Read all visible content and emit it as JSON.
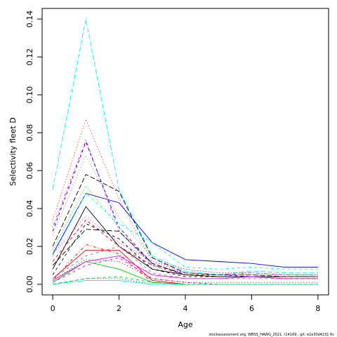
{
  "chart_data": {
    "type": "line",
    "title": "",
    "xlabel": "Age",
    "ylabel": "Selectivity fleet D",
    "xlim": [
      -0.32,
      8.32
    ],
    "ylim": [
      -0.0056,
      0.1456
    ],
    "x_ticks": [
      0,
      2,
      4,
      6,
      8
    ],
    "y_ticks": [
      0.0,
      0.02,
      0.04,
      0.06,
      0.08,
      0.1,
      0.12,
      0.14
    ],
    "y_tick_labels": [
      "0.00",
      "0.02",
      "0.04",
      "0.06",
      "0.08",
      "0.10",
      "0.12",
      "0.14"
    ],
    "grid": false,
    "legend": "none",
    "x": [
      0,
      1,
      2,
      3,
      4,
      5,
      6,
      7,
      8
    ],
    "series": [
      {
        "color": "#00FFFF",
        "dash": "longdash",
        "values": [
          0.05,
          0.14,
          0.05,
          0.015,
          0.007,
          0.005,
          0.007,
          0.006,
          0.006
        ]
      },
      {
        "color": "#FF0000",
        "dash": "dotted",
        "values": [
          0.034,
          0.087,
          0.045,
          0.012,
          0.008,
          0.006,
          0.006,
          0.005,
          0.005
        ]
      },
      {
        "color": "#FF00FF",
        "dash": "dashdot",
        "values": [
          0.03,
          0.076,
          0.028,
          0.01,
          0.006,
          0.005,
          0.006,
          0.005,
          0.005
        ]
      },
      {
        "color": "#0000FF",
        "dash": "dashed",
        "values": [
          0.028,
          0.075,
          0.03,
          0.011,
          0.005,
          0.005,
          0.004,
          0.004,
          0.004
        ]
      },
      {
        "color": "#808080",
        "dash": "dotted",
        "values": [
          0.026,
          0.068,
          0.035,
          0.014,
          0.008,
          0.006,
          0.006,
          0.005,
          0.005
        ]
      },
      {
        "color": "#000000",
        "dash": "longdash",
        "values": [
          0.02,
          0.058,
          0.049,
          0.014,
          0.006,
          0.005,
          0.005,
          0.004,
          0.004
        ]
      },
      {
        "color": "#00CD00",
        "dash": "dotted",
        "values": [
          0.018,
          0.052,
          0.03,
          0.01,
          0.006,
          0.005,
          0.005,
          0.004,
          0.004
        ]
      },
      {
        "color": "#0000FF",
        "dash": "solid",
        "values": [
          0.016,
          0.048,
          0.043,
          0.022,
          0.013,
          0.012,
          0.011,
          0.009,
          0.009
        ]
      },
      {
        "color": "#00FFFF",
        "dash": "dashed",
        "values": [
          0.015,
          0.048,
          0.032,
          0.022,
          0.009,
          0.008,
          0.009,
          0.008,
          0.008
        ]
      },
      {
        "color": "#000000",
        "dash": "solid",
        "values": [
          0.008,
          0.041,
          0.02,
          0.008,
          0.005,
          0.004,
          0.004,
          0.004,
          0.004
        ]
      },
      {
        "color": "#FF00FF",
        "dash": "dotted",
        "values": [
          0.016,
          0.036,
          0.022,
          0.012,
          0.006,
          0.005,
          0.005,
          0.005,
          0.005
        ]
      },
      {
        "color": "#FF0000",
        "dash": "dashed",
        "values": [
          0.012,
          0.034,
          0.02,
          0.01,
          0.005,
          0.004,
          0.004,
          0.004,
          0.004
        ]
      },
      {
        "color": "#000000",
        "dash": "dashed",
        "values": [
          0.005,
          0.032,
          0.024,
          0.008,
          0.004,
          0.004,
          0.004,
          0.003,
          0.003
        ]
      },
      {
        "color": "#000000",
        "dash": "longdash",
        "values": [
          0.01,
          0.029,
          0.028,
          0.011,
          0.005,
          0.004,
          0.004,
          0.004,
          0.004
        ]
      },
      {
        "color": "#FF0000",
        "dash": "solid",
        "values": [
          0.003,
          0.018,
          0.018,
          0.002,
          0.0,
          0.0,
          0.0,
          0.0,
          0.0
        ]
      },
      {
        "color": "#FF0000",
        "dash": "dashdot",
        "values": [
          0.002,
          0.021,
          0.016,
          0.001,
          0.0,
          0.0,
          0.0,
          0.0,
          0.0
        ]
      },
      {
        "color": "#00CD00",
        "dash": "solid",
        "values": [
          0.001,
          0.012,
          0.008,
          0.001,
          0.0,
          0.0,
          0.0,
          0.0,
          0.0
        ]
      },
      {
        "color": "#FF00FF",
        "dash": "dashed",
        "values": [
          0.001,
          0.01,
          0.014,
          0.003,
          0.001,
          0.0,
          0.0,
          0.0,
          0.0
        ]
      },
      {
        "color": "#000000",
        "dash": "dotted",
        "values": [
          0.002,
          0.013,
          0.012,
          0.003,
          0.001,
          0.001,
          0.001,
          0.001,
          0.001
        ]
      },
      {
        "color": "#0000FF",
        "dash": "dotted",
        "values": [
          0.0,
          0.003,
          0.003,
          0.0,
          0.0,
          0.0,
          0.0,
          0.0,
          0.0
        ]
      },
      {
        "color": "#00FFFF",
        "dash": "solid",
        "values": [
          0.0,
          0.002,
          0.002,
          0.0,
          0.0,
          0.0,
          0.0,
          0.0,
          0.0
        ]
      },
      {
        "color": "#00CD00",
        "dash": "dashed",
        "values": [
          0.0,
          0.003,
          0.004,
          0.001,
          0.0,
          0.0,
          0.0,
          0.0,
          0.0
        ]
      },
      {
        "color": "#FF00FF",
        "dash": "solid",
        "values": [
          0.002,
          0.012,
          0.015,
          0.005,
          0.003,
          0.003,
          0.004,
          0.003,
          0.003
        ]
      },
      {
        "color": "#808080",
        "dash": "dashed",
        "values": [
          0.003,
          0.015,
          0.02,
          0.006,
          0.003,
          0.003,
          0.003,
          0.003,
          0.003
        ]
      }
    ]
  },
  "footnote": "stockassessment.org, WBSS_HAWG_2021, r14169 , git: e2a30d4231 6c"
}
